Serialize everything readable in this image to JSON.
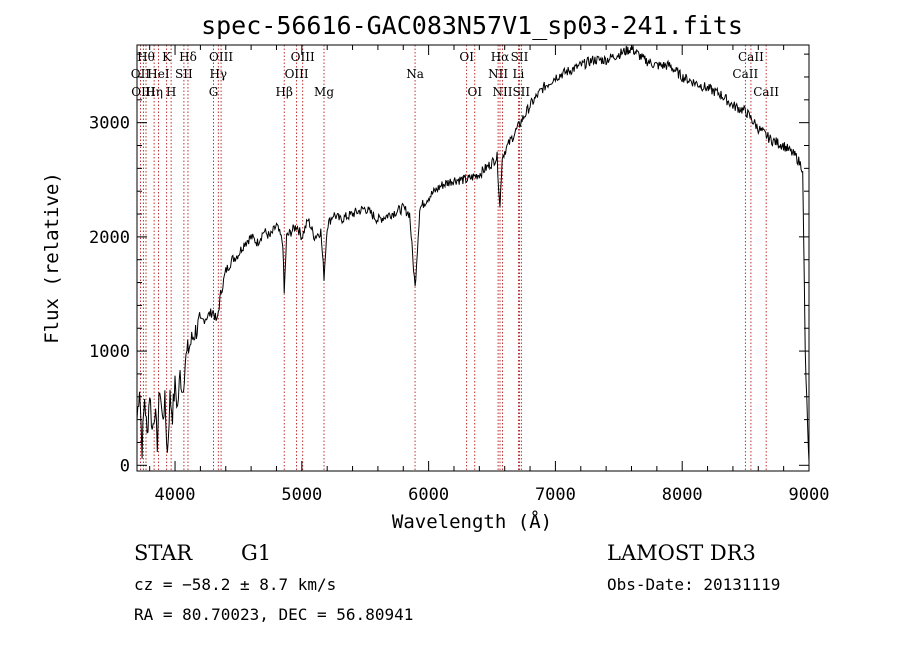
{
  "chart_data": {
    "type": "line",
    "title": "spec-56616-GAC083N57V1_sp03-241.fits",
    "xlabel": "Wavelength (Å)",
    "ylabel": "Flux (relative)",
    "xlim": [
      3700,
      9000
    ],
    "ylim": [
      -50,
      3680
    ],
    "x_ticks": [
      4000,
      5000,
      6000,
      7000,
      8000,
      9000
    ],
    "y_ticks": [
      0,
      1000,
      2000,
      3000
    ],
    "grid": false,
    "series": [
      {
        "name": "flux",
        "x": [
          3700,
          3720,
          3740,
          3760,
          3780,
          3800,
          3820,
          3840,
          3860,
          3880,
          3900,
          3920,
          3940,
          3960,
          3980,
          4000,
          4020,
          4040,
          4060,
          4080,
          4100,
          4150,
          4200,
          4250,
          4300,
          4330,
          4360,
          4400,
          4450,
          4500,
          4550,
          4600,
          4650,
          4700,
          4750,
          4800,
          4850,
          4861,
          4880,
          4920,
          4960,
          5000,
          5050,
          5100,
          5150,
          5175,
          5200,
          5250,
          5300,
          5400,
          5500,
          5600,
          5700,
          5800,
          5850,
          5893,
          5930,
          6000,
          6100,
          6200,
          6300,
          6400,
          6500,
          6540,
          6563,
          6580,
          6600,
          6650,
          6700,
          6750,
          6800,
          6900,
          7000,
          7100,
          7200,
          7300,
          7400,
          7500,
          7600,
          7700,
          7800,
          7900,
          8000,
          8100,
          8200,
          8300,
          8400,
          8500,
          8600,
          8700,
          8800,
          8900,
          8950,
          8970,
          8990,
          9000
        ],
        "values": [
          400,
          700,
          150,
          600,
          250,
          650,
          300,
          500,
          200,
          700,
          400,
          550,
          100,
          600,
          450,
          700,
          500,
          800,
          650,
          900,
          1000,
          1150,
          1250,
          1300,
          1350,
          1250,
          1500,
          1700,
          1800,
          1850,
          1950,
          2000,
          1950,
          2050,
          2000,
          2100,
          1950,
          1500,
          2000,
          2050,
          2100,
          2000,
          2150,
          2000,
          2050,
          1650,
          2100,
          2200,
          2150,
          2200,
          2250,
          2150,
          2200,
          2250,
          2200,
          1550,
          2250,
          2350,
          2450,
          2500,
          2500,
          2550,
          2650,
          2700,
          2250,
          2700,
          2750,
          2850,
          2950,
          3050,
          3150,
          3300,
          3400,
          3450,
          3500,
          3550,
          3550,
          3600,
          3650,
          3550,
          3500,
          3500,
          3400,
          3350,
          3300,
          3250,
          3150,
          3100,
          2950,
          2850,
          2800,
          2700,
          2600,
          1000,
          300,
          30
        ]
      }
    ],
    "lines": [
      {
        "wl": 3727,
        "label": "OII",
        "row": 1
      },
      {
        "wl": 3750,
        "label": "OIII",
        "row": 2
      },
      {
        "wl": 3771,
        "label": "Hθ",
        "row": 0
      },
      {
        "wl": 3835,
        "label": "Hη",
        "row": 2
      },
      {
        "wl": 3869,
        "label": "HeI",
        "row": 1
      },
      {
        "wl": 3934,
        "label": "K",
        "row": 0
      },
      {
        "wl": 3969,
        "label": "H",
        "row": 2
      },
      {
        "wl": 4070,
        "label": "SII",
        "row": 1
      },
      {
        "wl": 4102,
        "label": "Hδ",
        "row": 0
      },
      {
        "wl": 4304,
        "label": "G",
        "row": 2
      },
      {
        "wl": 4341,
        "label": "Hγ",
        "row": 1
      },
      {
        "wl": 4363,
        "label": "OIII",
        "row": 0
      },
      {
        "wl": 4861,
        "label": "Hβ",
        "row": 2
      },
      {
        "wl": 4959,
        "label": "OIII",
        "row": 1
      },
      {
        "wl": 5007,
        "label": "OIII",
        "row": 0
      },
      {
        "wl": 5175,
        "label": "Mg",
        "row": 2
      },
      {
        "wl": 5893,
        "label": "Na",
        "row": 1
      },
      {
        "wl": 6300,
        "label": "OI",
        "row": 0
      },
      {
        "wl": 6364,
        "label": "OI",
        "row": 2
      },
      {
        "wl": 6548,
        "label": "NII",
        "row": 1
      },
      {
        "wl": 6563,
        "label": "Hα",
        "row": 0
      },
      {
        "wl": 6583,
        "label": "NII",
        "row": 2
      },
      {
        "wl": 6708,
        "label": "Li",
        "row": 1
      },
      {
        "wl": 6717,
        "label": "SII",
        "row": 0
      },
      {
        "wl": 6731,
        "label": "SII",
        "row": 2
      },
      {
        "wl": 8498,
        "label": "CaII",
        "row": 1
      },
      {
        "wl": 8542,
        "label": "CaII",
        "row": 0
      },
      {
        "wl": 8662,
        "label": "CaII",
        "row": 2
      }
    ]
  },
  "info": {
    "object_class": "STAR",
    "subclass": "G1",
    "survey": "LAMOST DR3",
    "cz": "cz = −58.2 ± 8.7 km/s",
    "obs_date": "Obs-Date: 20131119",
    "coords": "RA =  80.70023, DEC =  56.80941"
  }
}
